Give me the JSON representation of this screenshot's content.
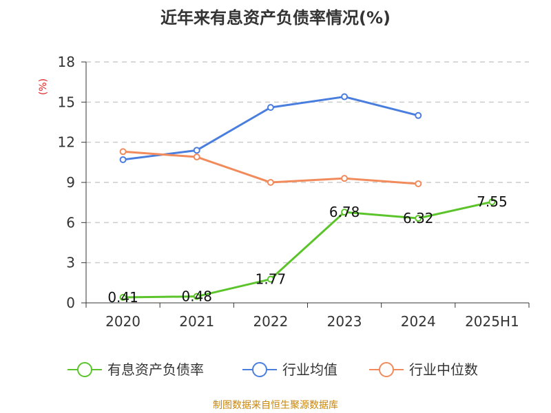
{
  "chart_data": {
    "type": "line",
    "title": "近年来有息资产负债率情况(%)",
    "ylabel": "(%)",
    "categories": [
      "2020",
      "2021",
      "2022",
      "2023",
      "2024",
      "2025H1"
    ],
    "ylim": [
      0,
      18
    ],
    "yticks": [
      0,
      3,
      6,
      9,
      12,
      15,
      18
    ],
    "grid": "horizontal-dashed",
    "legend_position": "bottom",
    "series": [
      {
        "name": "有息资产负债率",
        "color": "#5bc42a",
        "values": [
          0.41,
          0.48,
          1.77,
          6.78,
          6.32,
          7.55
        ],
        "labels": [
          "0.41",
          "0.48",
          "1.77",
          "6.78",
          "6.32",
          "7.55"
        ]
      },
      {
        "name": "行业均值",
        "color": "#4a7ede",
        "values": [
          10.7,
          11.4,
          14.6,
          15.4,
          14.0,
          null
        ]
      },
      {
        "name": "行业中位数",
        "color": "#f28b5b",
        "values": [
          11.3,
          10.9,
          9.0,
          9.3,
          8.9,
          null
        ]
      }
    ]
  },
  "source": "制图数据来自恒生聚源数据库"
}
